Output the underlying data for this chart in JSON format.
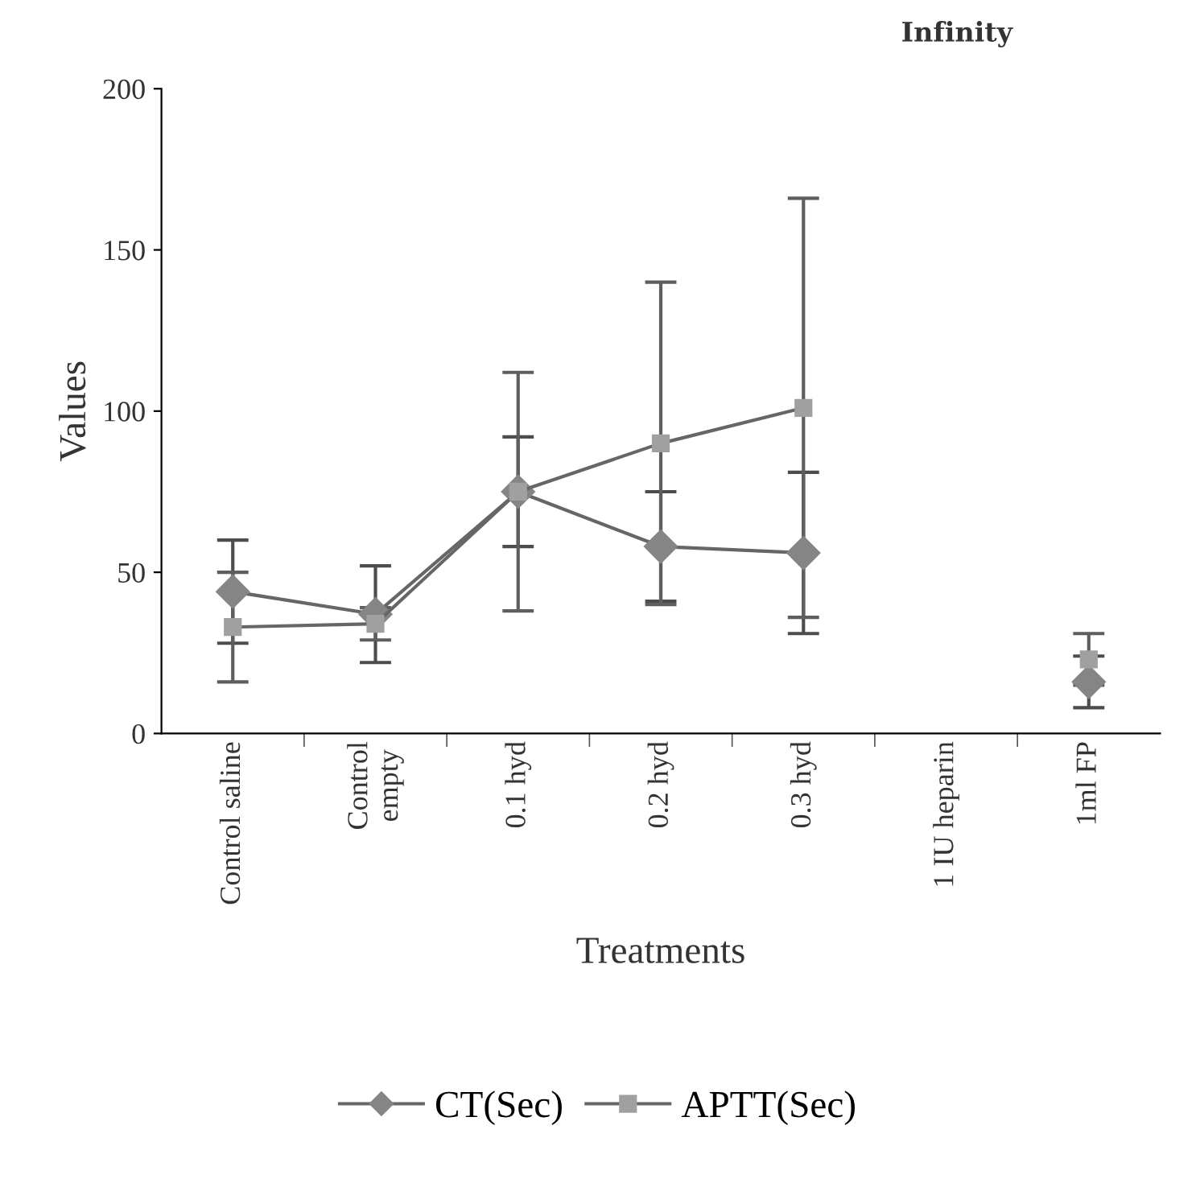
{
  "chart_data": {
    "type": "line",
    "xlabel": "Treatments",
    "ylabel": "Values",
    "categories": [
      "Control saline",
      "Control\nempty",
      "0.1 hyd",
      "0.2 hyd",
      "0.3 hyd",
      "1 IU heparin",
      "1ml FP"
    ],
    "series": [
      {
        "name": "CT(Sec)",
        "color": "#858585",
        "marker": "diamond",
        "values": [
          44,
          37,
          75,
          58,
          56,
          null,
          16
        ],
        "errors": [
          16,
          15,
          17,
          17,
          25,
          null,
          8
        ]
      },
      {
        "name": "APTT(Sec)",
        "color": "#a0a0a0",
        "marker": "square",
        "values": [
          33,
          34,
          75,
          90,
          101,
          null,
          23
        ],
        "errors": [
          17,
          5,
          37,
          50,
          65,
          null,
          8
        ]
      }
    ],
    "ylim": [
      0,
      200
    ],
    "yticks": [
      0,
      50,
      100,
      150,
      200
    ],
    "grid": false,
    "legend": "bottom",
    "line_style": "solid",
    "annotations": [
      "Infinity"
    ]
  }
}
